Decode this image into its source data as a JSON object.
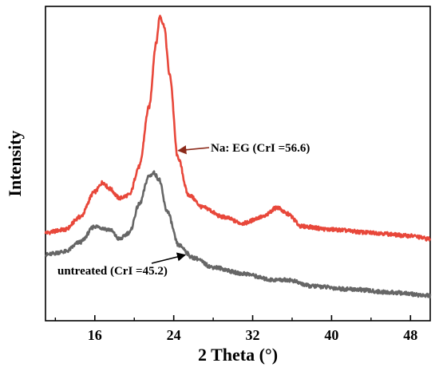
{
  "chart_data": {
    "type": "line",
    "xlabel": "2 Theta (°)",
    "ylabel": "Intensity",
    "xlim": [
      11,
      50
    ],
    "ylim": [
      0,
      100
    ],
    "x_ticks": [
      16,
      24,
      32,
      40,
      48
    ],
    "y_ticks_shown": false,
    "grid": false,
    "series": [
      {
        "name": "Na: EG (CrI =56.6)",
        "color": "#e8473a",
        "points": [
          [
            11,
            28
          ],
          [
            13,
            29
          ],
          [
            14.5,
            33
          ],
          [
            16,
            41
          ],
          [
            16.8,
            44
          ],
          [
            17.5,
            42
          ],
          [
            18.5,
            39
          ],
          [
            19.5,
            40
          ],
          [
            20.5,
            49
          ],
          [
            21.5,
            68
          ],
          [
            22.2,
            88
          ],
          [
            22.6,
            97
          ],
          [
            23,
            94
          ],
          [
            23.6,
            78
          ],
          [
            24.4,
            52
          ],
          [
            25.5,
            40
          ],
          [
            27,
            36
          ],
          [
            29,
            33
          ],
          [
            31,
            31
          ],
          [
            33,
            33
          ],
          [
            34.5,
            36
          ],
          [
            35.5,
            34
          ],
          [
            37,
            30
          ],
          [
            40,
            29
          ],
          [
            44,
            28
          ],
          [
            48,
            27
          ],
          [
            50,
            26
          ]
        ]
      },
      {
        "name": "untreated (CrI =45.2)",
        "color": "#666666",
        "points": [
          [
            11,
            21
          ],
          [
            13,
            22
          ],
          [
            14.5,
            25
          ],
          [
            16,
            30
          ],
          [
            17.5,
            29
          ],
          [
            18.5,
            26
          ],
          [
            19.5,
            28
          ],
          [
            20.5,
            37
          ],
          [
            21.5,
            46
          ],
          [
            22,
            47
          ],
          [
            22.5,
            45
          ],
          [
            23.3,
            35
          ],
          [
            24.5,
            24
          ],
          [
            26,
            20
          ],
          [
            28,
            17
          ],
          [
            31,
            15
          ],
          [
            34,
            13
          ],
          [
            35.5,
            13
          ],
          [
            38,
            11
          ],
          [
            42,
            10
          ],
          [
            46,
            9
          ],
          [
            50,
            8
          ]
        ]
      }
    ],
    "annotations": [
      {
        "text": "Na: EG (CrI =56.6)",
        "series": 0,
        "arrow_to_x": 24.3
      },
      {
        "text": "untreated (CrI =45.2)",
        "series": 1,
        "arrow_to_x": 25.0
      }
    ]
  }
}
